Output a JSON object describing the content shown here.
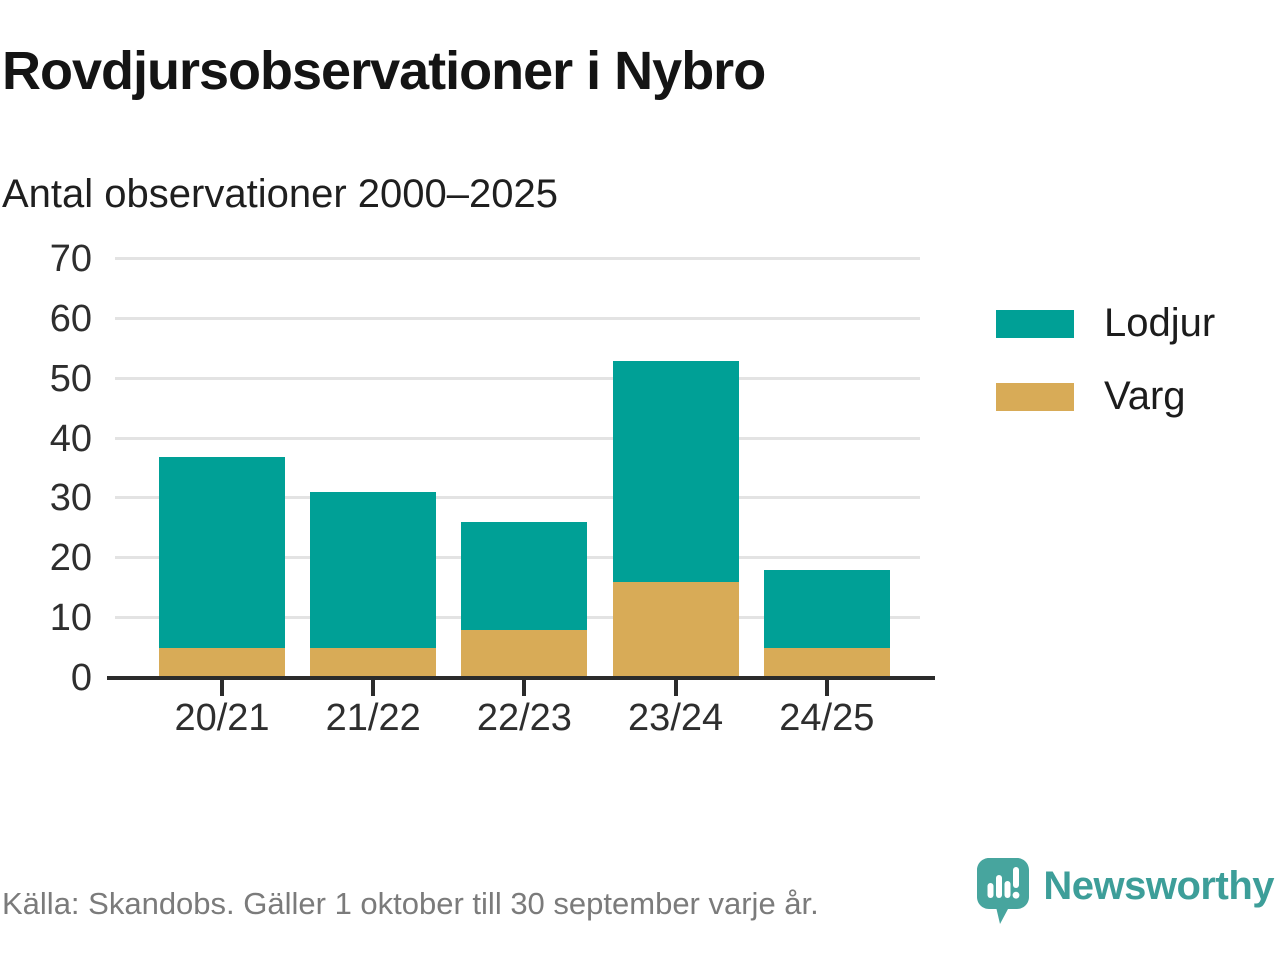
{
  "title": "Rovdjursobservationer i Nybro",
  "subtitle": "Antal observationer 2000–2025",
  "chart_data": {
    "type": "bar",
    "stacked": true,
    "categories": [
      "20/21",
      "21/22",
      "22/23",
      "23/24",
      "24/25"
    ],
    "series": [
      {
        "name": "Lodjur",
        "color": "#00a096",
        "values": [
          32,
          26,
          18,
          37,
          13
        ]
      },
      {
        "name": "Varg",
        "color": "#d8ab57",
        "values": [
          5,
          5,
          8,
          16,
          5
        ]
      }
    ],
    "totals": [
      37,
      31,
      26,
      53,
      18
    ],
    "title": "Rovdjursobservationer i Nybro",
    "subtitle": "Antal observationer 2000–2025",
    "xlabel": "",
    "ylabel": "",
    "ylim": [
      0,
      70
    ],
    "yticks": [
      0,
      10,
      20,
      30,
      40,
      50,
      60,
      70
    ],
    "grid": "horizontal",
    "legend_position": "right",
    "stack_order_bottom_to_top": [
      "Varg",
      "Lodjur"
    ]
  },
  "legend": {
    "items": [
      {
        "label": "Lodjur",
        "color": "#00a096"
      },
      {
        "label": "Varg",
        "color": "#d8ab57"
      }
    ]
  },
  "footer": {
    "source": "Källa: Skandobs. Gäller 1 oktober till 30 september varje år."
  },
  "branding": {
    "name": "Newsworthy",
    "wordmark_color": "#3d9e99",
    "icon_color": "#47a59e",
    "icon": "bar-chart-speech-bubble-icon"
  },
  "colors": {
    "axis": "#2b2b2b",
    "gridline": "#e3e3e3",
    "text_dark": "#141414",
    "text_muted": "#7b7b7b"
  }
}
